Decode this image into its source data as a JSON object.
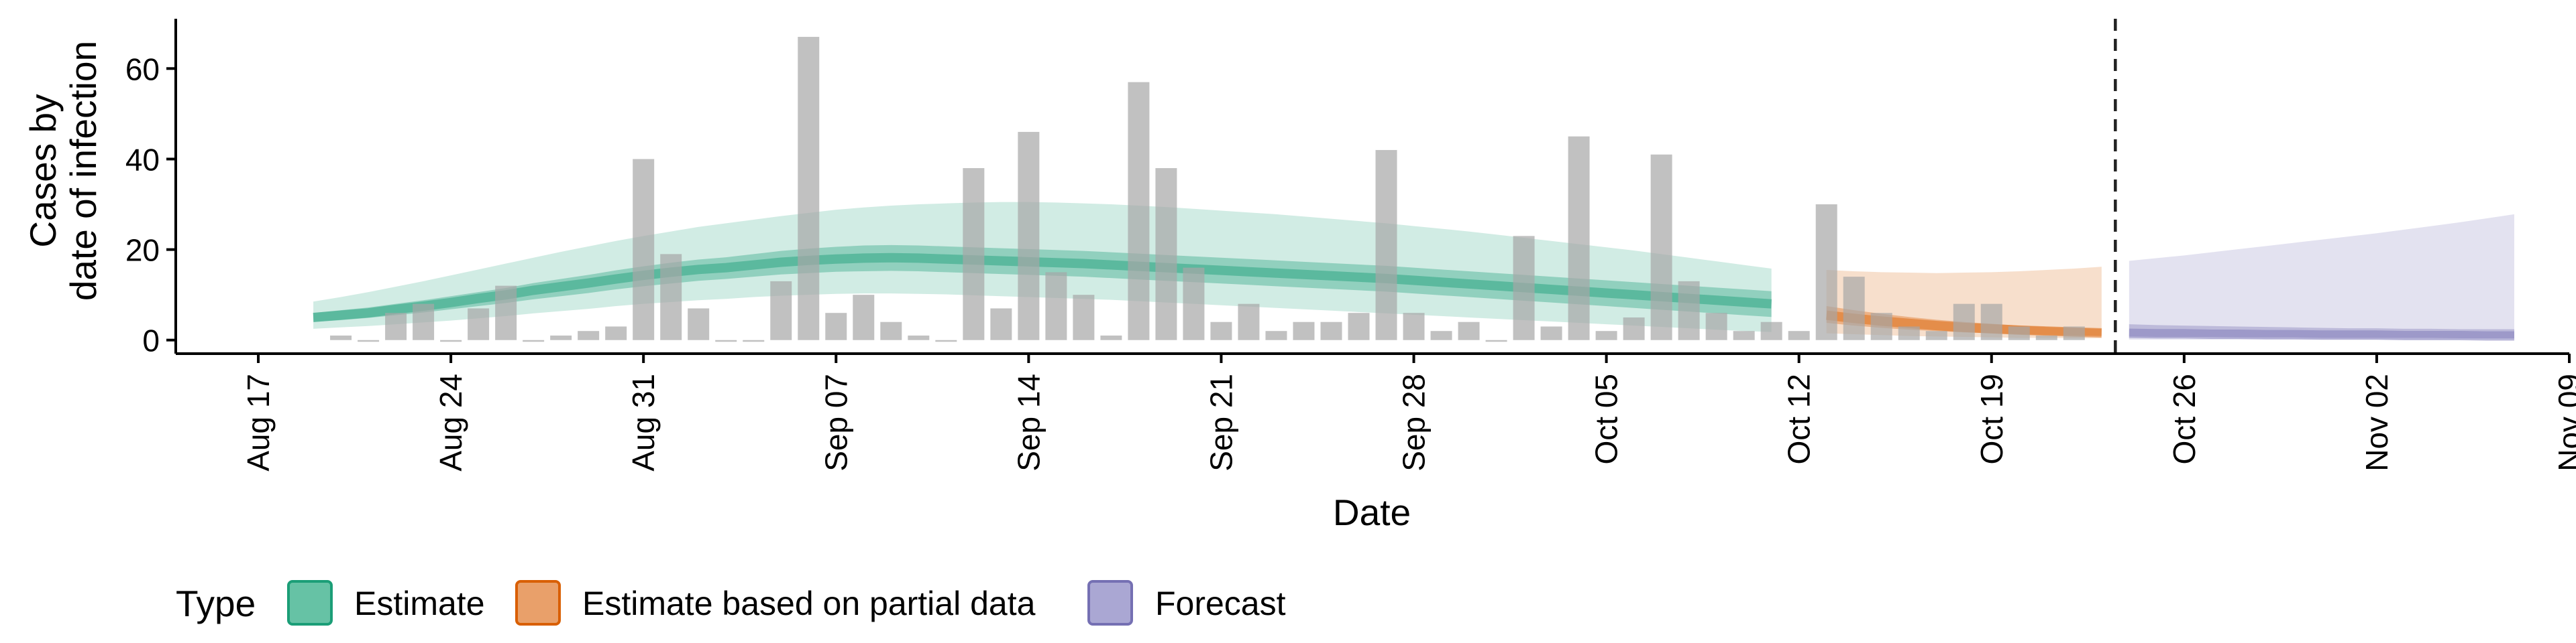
{
  "chart_data": {
    "type": "bar",
    "title": "",
    "ylabel_lines": [
      "Cases by",
      "date of infection"
    ],
    "xlabel": "Date",
    "ylim": [
      -3,
      71
    ],
    "yticks": [
      0,
      20,
      40,
      60
    ],
    "xlim": [
      "2020-08-14",
      "2020-11-09"
    ],
    "xticks": [
      {
        "date": "2020-08-17",
        "label": "Aug 17"
      },
      {
        "date": "2020-08-24",
        "label": "Aug 24"
      },
      {
        "date": "2020-08-31",
        "label": "Aug 31"
      },
      {
        "date": "2020-09-07",
        "label": "Sep 07"
      },
      {
        "date": "2020-09-14",
        "label": "Sep 14"
      },
      {
        "date": "2020-09-21",
        "label": "Sep 21"
      },
      {
        "date": "2020-09-28",
        "label": "Sep 28"
      },
      {
        "date": "2020-10-05",
        "label": "Oct 05"
      },
      {
        "date": "2020-10-12",
        "label": "Oct 12"
      },
      {
        "date": "2020-10-19",
        "label": "Oct 19"
      },
      {
        "date": "2020-10-26",
        "label": "Oct 26"
      },
      {
        "date": "2020-11-02",
        "label": "Nov 02"
      },
      {
        "date": "2020-11-09",
        "label": "Nov 09"
      }
    ],
    "forecast_start": "2020-10-23",
    "grid": false,
    "legend": {
      "position": "bottom",
      "title": "Type",
      "entries": [
        {
          "label": "Estimate",
          "fill": "#66c2a5",
          "stroke": "#1b9e77"
        },
        {
          "label": "Estimate based on partial data",
          "fill": "#e9a06a",
          "stroke": "#d95f02"
        },
        {
          "label": "Forecast",
          "fill": "#aaa7d3",
          "stroke": "#7570b3"
        }
      ]
    },
    "colors": {
      "bars": "#a6a6a6",
      "estimate": "#1b9e77",
      "partial": "#d95f02",
      "forecast": "#7570b3",
      "vline": "#222222"
    },
    "observed_cases": {
      "start": "2020-08-20",
      "values": [
        1,
        0,
        6,
        8,
        0,
        7,
        12,
        0,
        1,
        2,
        3,
        40,
        19,
        7,
        0,
        0,
        13,
        67,
        6,
        10,
        4,
        1,
        0,
        38,
        7,
        46,
        15,
        10,
        1,
        57,
        38,
        16,
        4,
        8,
        2,
        4,
        4,
        6,
        42,
        6,
        2,
        4,
        0,
        23,
        3,
        45,
        2,
        5,
        41,
        13,
        6,
        2,
        4,
        2,
        30,
        14,
        6,
        3,
        2,
        8,
        8,
        3,
        1,
        3
      ]
    },
    "estimate": {
      "start": "2020-08-19",
      "median": [
        5,
        5.5,
        6,
        6.8,
        7.5,
        8.3,
        9.2,
        10,
        11,
        11.8,
        12.6,
        13.5,
        14.3,
        15,
        15.6,
        16,
        16.6,
        17.2,
        17.6,
        17.9,
        18.1,
        18.2,
        18.1,
        17.9,
        17.7,
        17.5,
        17.3,
        17.1,
        16.9,
        16.6,
        16.3,
        16,
        15.7,
        15.4,
        15.1,
        14.8,
        14.5,
        14.2,
        13.9,
        13.6,
        13.2,
        12.8,
        12.4,
        12,
        11.6,
        11.2,
        10.8,
        10.4,
        10,
        9.6,
        9.2,
        8.8,
        8.4,
        8
      ],
      "lower50": [
        4,
        4.4,
        4.9,
        5.5,
        6.1,
        6.8,
        7.5,
        8.2,
        9,
        9.7,
        10.4,
        11.2,
        11.9,
        12.5,
        13.1,
        13.5,
        14,
        14.5,
        14.8,
        15.1,
        15.2,
        15.3,
        15.2,
        15,
        14.8,
        14.6,
        14.4,
        14.2,
        14,
        13.7,
        13.4,
        13.1,
        12.8,
        12.5,
        12.2,
        11.9,
        11.6,
        11.3,
        11,
        10.7,
        10.3,
        9.9,
        9.5,
        9.1,
        8.7,
        8.3,
        7.9,
        7.5,
        7.1,
        6.7,
        6.3,
        5.9,
        5.5,
        5.1
      ],
      "upper50": [
        6,
        6.6,
        7.2,
        8,
        8.8,
        9.7,
        10.6,
        11.5,
        12.6,
        13.5,
        14.4,
        15.4,
        16.3,
        17.1,
        17.8,
        18.3,
        19,
        19.7,
        20.2,
        20.6,
        20.9,
        21,
        20.9,
        20.7,
        20.5,
        20.3,
        20.1,
        19.9,
        19.7,
        19.4,
        19.1,
        18.8,
        18.5,
        18.2,
        17.9,
        17.6,
        17.3,
        17,
        16.7,
        16.4,
        16,
        15.6,
        15.2,
        14.8,
        14.4,
        14,
        13.6,
        13.2,
        12.8,
        12.4,
        12,
        11.6,
        11.2,
        10.8
      ],
      "lower90": [
        2.5,
        2.8,
        3.1,
        3.5,
        3.9,
        4.3,
        4.8,
        5.3,
        5.9,
        6.4,
        6.9,
        7.5,
        8,
        8.4,
        8.8,
        9.1,
        9.5,
        9.8,
        10,
        10.2,
        10.3,
        10.3,
        10.2,
        10.1,
        9.9,
        9.7,
        9.5,
        9.3,
        9.1,
        8.9,
        8.6,
        8.3,
        8,
        7.7,
        7.4,
        7.1,
        6.8,
        6.5,
        6.2,
        5.9,
        5.6,
        5.3,
        5,
        4.7,
        4.4,
        4.1,
        3.8,
        3.5,
        3.2,
        2.9,
        2.6,
        2.3,
        2,
        1.8
      ],
      "upper90": [
        8.5,
        9.5,
        10.6,
        11.8,
        13,
        14.3,
        15.6,
        16.9,
        18.2,
        19.5,
        20.7,
        21.9,
        23,
        24,
        25,
        25.8,
        26.6,
        27.4,
        28.1,
        28.8,
        29.3,
        29.7,
        30,
        30.2,
        30.4,
        30.5,
        30.5,
        30.4,
        30.2,
        30,
        29.7,
        29.4,
        29,
        28.6,
        28.2,
        27.8,
        27.3,
        26.8,
        26.3,
        25.8,
        25.2,
        24.6,
        24,
        23.3,
        22.6,
        21.9,
        21.2,
        20.5,
        19.8,
        19,
        18.2,
        17.4,
        16.6,
        15.8
      ]
    },
    "partial": {
      "start": "2020-10-13",
      "median": [
        5.5,
        4.8,
        4.2,
        3.7,
        3.2,
        2.8,
        2.5,
        2.2,
        2,
        1.8,
        1.6
      ],
      "lower50": [
        3.8,
        3.2,
        2.7,
        2.3,
        2,
        1.7,
        1.5,
        1.3,
        1.1,
        1,
        0.9
      ],
      "upper50": [
        7.5,
        6.6,
        5.8,
        5.1,
        4.5,
        4,
        3.6,
        3.2,
        2.9,
        2.7,
        2.5
      ],
      "lower90": [
        1.5,
        1.3,
        1.1,
        0.9,
        0.8,
        0.7,
        0.6,
        0.5,
        0.5,
        0.4,
        0.4
      ],
      "upper90": [
        15.5,
        15.2,
        15,
        14.9,
        14.8,
        14.9,
        15,
        15.2,
        15.5,
        15.8,
        16.2
      ]
    },
    "forecast": {
      "start": "2020-10-24",
      "median": [
        1.5,
        1.4,
        1.4,
        1.3,
        1.3,
        1.2,
        1.2,
        1.1,
        1.1,
        1.1,
        1,
        1,
        1,
        0.9,
        0.9
      ],
      "lower50": [
        0.8,
        0.7,
        0.7,
        0.7,
        0.6,
        0.6,
        0.6,
        0.5,
        0.5,
        0.5,
        0.5,
        0.5,
        0.4,
        0.4,
        0.4
      ],
      "upper50": [
        3.5,
        3.3,
        3.2,
        3.1,
        3,
        2.9,
        2.8,
        2.7,
        2.6,
        2.6,
        2.5,
        2.5,
        2.4,
        2.4,
        2.4
      ],
      "lower90": [
        0.1,
        0.1,
        0.1,
        0.1,
        0.1,
        0.1,
        0.1,
        0.1,
        0.1,
        0.1,
        0.1,
        0.1,
        0.1,
        0.1,
        0.1
      ],
      "upper90": [
        17.5,
        18.1,
        18.7,
        19.4,
        20.1,
        20.8,
        21.5,
        22.2,
        22.9,
        23.6,
        24.4,
        25.2,
        26,
        26.9,
        27.8
      ]
    }
  }
}
